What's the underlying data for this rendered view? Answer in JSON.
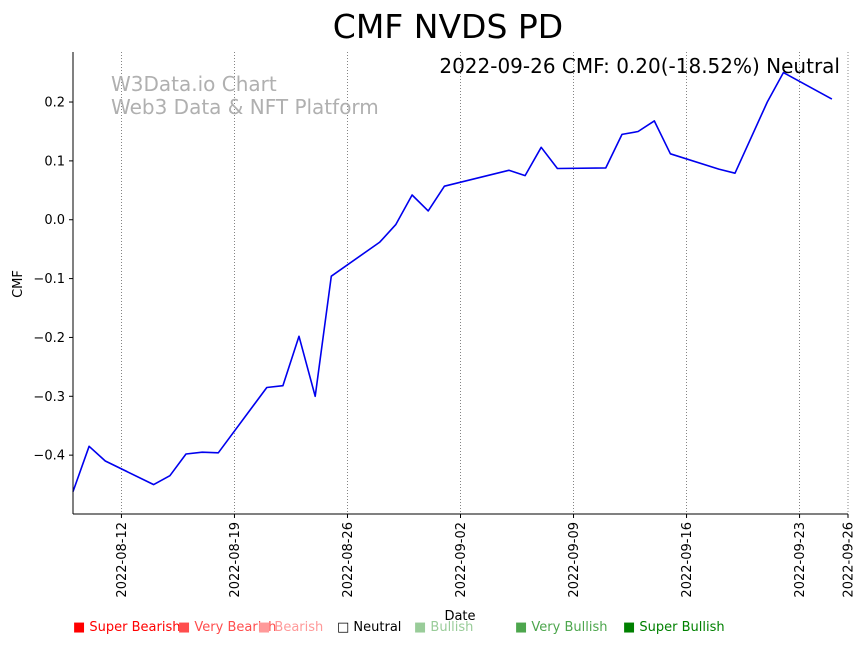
{
  "chart_data": {
    "type": "line",
    "title": "CMF NVDS PD",
    "annotation": "2022-09-26 CMF: 0.20(-18.52%) Neutral",
    "watermark_line1": "W3Data.io Chart",
    "watermark_line2": "Web3 Data & NFT Platform",
    "xlabel": "Date",
    "ylabel": "CMF",
    "ylim": [
      -0.5,
      0.285
    ],
    "yticks": [
      {
        "value": 0.2,
        "label": "0.2"
      },
      {
        "value": 0.1,
        "label": "0.1"
      },
      {
        "value": 0.0,
        "label": "0.0"
      },
      {
        "value": -0.1,
        "label": "−0.1"
      },
      {
        "value": -0.2,
        "label": "−0.2"
      },
      {
        "value": -0.3,
        "label": "−0.3"
      },
      {
        "value": -0.4,
        "label": "−0.4"
      }
    ],
    "xlim": [
      "2022-08-09",
      "2022-09-26"
    ],
    "xticks": [
      "2022-08-12",
      "2022-08-19",
      "2022-08-26",
      "2022-09-02",
      "2022-09-09",
      "2022-09-16",
      "2022-09-23",
      "2022-09-26"
    ],
    "series": [
      {
        "name": "CMF",
        "color": "#0000ee",
        "points": [
          [
            "2022-08-09",
            -0.462
          ],
          [
            "2022-08-10",
            -0.385
          ],
          [
            "2022-08-11",
            -0.41
          ],
          [
            "2022-08-14",
            -0.45
          ],
          [
            "2022-08-15",
            -0.435
          ],
          [
            "2022-08-16",
            -0.398
          ],
          [
            "2022-08-17",
            -0.395
          ],
          [
            "2022-08-18",
            -0.396
          ],
          [
            "2022-08-21",
            -0.285
          ],
          [
            "2022-08-22",
            -0.282
          ],
          [
            "2022-08-23",
            -0.198
          ],
          [
            "2022-08-24",
            -0.3
          ],
          [
            "2022-08-25",
            -0.096
          ],
          [
            "2022-08-28",
            -0.038
          ],
          [
            "2022-08-29",
            -0.008
          ],
          [
            "2022-08-30",
            0.042
          ],
          [
            "2022-08-31",
            0.015
          ],
          [
            "2022-09-01",
            0.057
          ],
          [
            "2022-09-05",
            0.084
          ],
          [
            "2022-09-06",
            0.075
          ],
          [
            "2022-09-07",
            0.123
          ],
          [
            "2022-09-08",
            0.087
          ],
          [
            "2022-09-11",
            0.088
          ],
          [
            "2022-09-12",
            0.145
          ],
          [
            "2022-09-13",
            0.15
          ],
          [
            "2022-09-14",
            0.168
          ],
          [
            "2022-09-15",
            0.112
          ],
          [
            "2022-09-18",
            0.086
          ],
          [
            "2022-09-19",
            0.079
          ],
          [
            "2022-09-21",
            0.2
          ],
          [
            "2022-09-22",
            0.25
          ],
          [
            "2022-09-25",
            0.205
          ]
        ]
      }
    ],
    "legend": [
      {
        "label": "■ Super Bearish",
        "color": "#ff0000"
      },
      {
        "label": "■ Very Bearish",
        "color": "#ff4d4d"
      },
      {
        "label": "■ Bearish",
        "color": "#ff9999"
      },
      {
        "label": "□ Neutral",
        "color": "#000000"
      },
      {
        "label": "■ Bullish",
        "color": "#99cc99"
      },
      {
        "label": "■ Very Bullish",
        "color": "#4da64d"
      },
      {
        "label": "■ Super Bullish",
        "color": "#008000"
      }
    ],
    "colors": {
      "grid": "#666666",
      "axis": "#000000",
      "watermark": "#b0b0b0"
    }
  }
}
